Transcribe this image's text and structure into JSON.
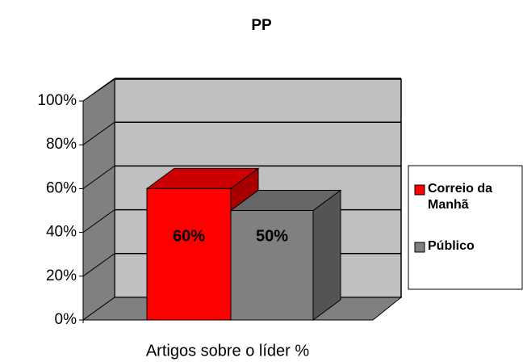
{
  "chart_data": {
    "type": "bar3d",
    "title": "PP",
    "categories": [
      "Artigos sobre o líder %"
    ],
    "series": [
      {
        "name": "Correio da Manhã",
        "color": "#ff0000",
        "values": [
          60
        ],
        "value_labels": [
          "60%"
        ]
      },
      {
        "name": "Público",
        "color": "#808080",
        "values": [
          50
        ],
        "value_labels": [
          "50%"
        ]
      }
    ],
    "ylim": [
      0,
      100
    ],
    "yticks": [
      {
        "value": 0,
        "label": "0%"
      },
      {
        "value": 20,
        "label": "20%"
      },
      {
        "value": 40,
        "label": "40%"
      },
      {
        "value": 60,
        "label": "60%"
      },
      {
        "value": 80,
        "label": "80%"
      },
      {
        "value": 100,
        "label": "100%"
      }
    ],
    "grid": true,
    "legend": "right"
  }
}
